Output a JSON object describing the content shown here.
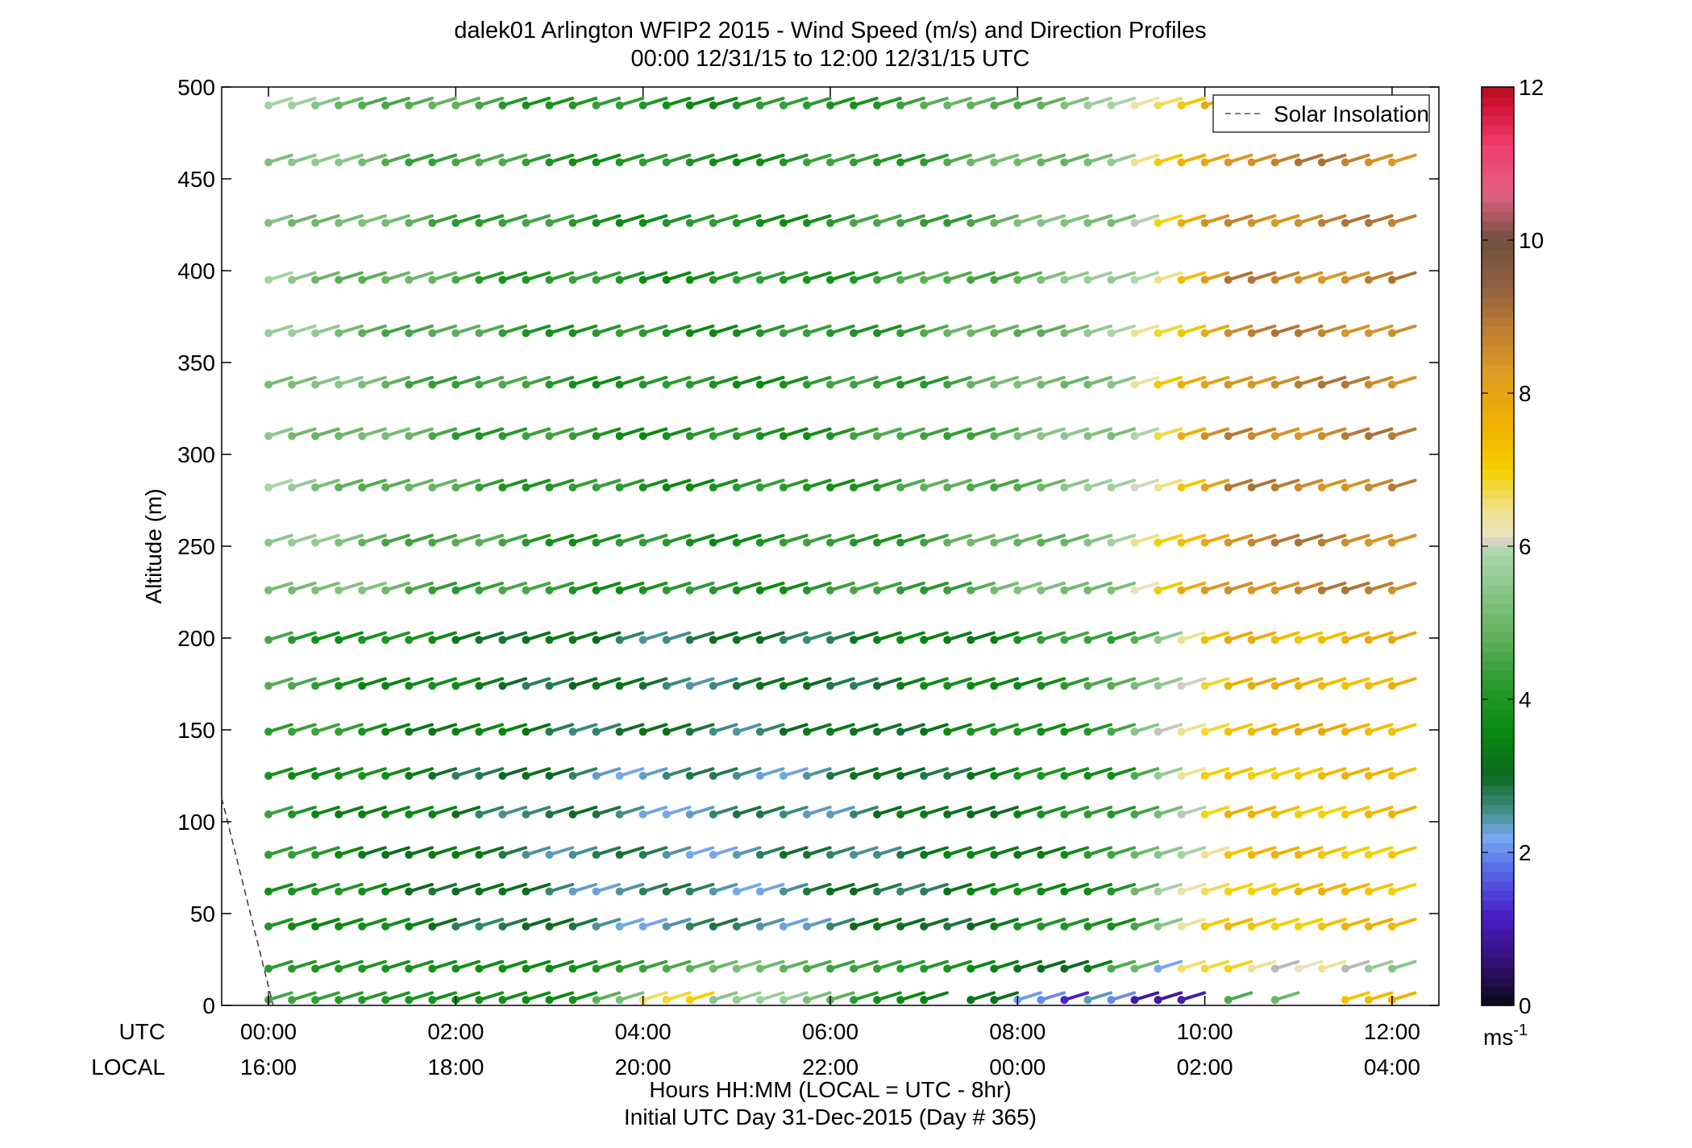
{
  "chart_data": {
    "type": "wind-barb-profile",
    "title": "dalek01 Arlington WFIP2 2015 - Wind Speed (m/s) and Direction Profiles",
    "subtitle": "00:00 12/31/15 to 12:00 12/31/15  UTC",
    "ylabel": "Altitude (m)",
    "xlabel_line1": "Hours HH:MM  (LOCAL = UTC - 8hr)",
    "xlabel_line2": "Initial UTC Day 31-Dec-2015 (Day # 365)",
    "row_label_utc": "UTC",
    "row_label_local": "LOCAL",
    "x_ticks_utc": [
      "00:00",
      "02:00",
      "04:00",
      "06:00",
      "08:00",
      "10:00",
      "12:00"
    ],
    "x_ticks_local": [
      "16:00",
      "18:00",
      "20:00",
      "22:00",
      "00:00",
      "02:00",
      "04:00"
    ],
    "x_tick_hours": [
      0,
      2,
      4,
      6,
      8,
      10,
      12
    ],
    "xlim_hours": [
      -0.5,
      12.5
    ],
    "ylim": [
      0,
      500
    ],
    "y_ticks": [
      0,
      50,
      100,
      150,
      200,
      250,
      300,
      350,
      400,
      450,
      500
    ],
    "legend": {
      "label": "Solar Insolation",
      "placement": "top-right"
    },
    "solar_insolation": {
      "hours": [
        -0.5,
        0.05
      ],
      "altitudes": [
        113,
        0
      ]
    },
    "colorbar": {
      "unit_label": "ms",
      "unit_exp": "-1",
      "ticks": [
        0,
        2,
        4,
        6,
        8,
        10,
        12
      ],
      "range": [
        0,
        12
      ]
    },
    "altitudes": [
      3,
      20,
      43,
      62,
      82,
      104,
      125,
      149,
      174,
      199,
      226,
      252,
      282,
      310,
      338,
      366,
      395,
      426,
      459,
      490
    ],
    "time_step_hours": 0.25,
    "num_times": 49,
    "profile_speeds_ms": {
      "h3": [
        4.5,
        4.4,
        4.3,
        4.2,
        4.1,
        4.0,
        3.9,
        3.8,
        3.7,
        3.8,
        3.8,
        3.7,
        3.6,
        3.8,
        4.8,
        5.2,
        6.6,
        6.8,
        7.0,
        5.4,
        5.6,
        5.7,
        5.6,
        5.2,
        4.8,
        4.2,
        3.8,
        3.6,
        3.4,
        null,
        3.2,
        3.1,
        2.1,
        2.0,
        1.2,
        2.4,
        2.0,
        0.9,
        0.9,
        1.0,
        null,
        4.6,
        null,
        5.0,
        null,
        null,
        7.2,
        7.4,
        7.6
      ],
      "h20": [
        4.2,
        4.1,
        4.0,
        4.0,
        4.0,
        3.9,
        3.9,
        3.8,
        3.8,
        3.7,
        3.7,
        3.6,
        3.6,
        3.8,
        4.0,
        4.2,
        4.4,
        4.6,
        4.8,
        5.0,
        5.2,
        5.0,
        4.8,
        4.6,
        4.4,
        4.4,
        4.3,
        4.2,
        4.1,
        3.9,
        3.6,
        3.4,
        3.1,
        3.0,
        3.0,
        3.4,
        4.6,
        5.0,
        2.2,
        6.6,
        6.8,
        6.9,
        6.4,
        6.0,
        6.2,
        6.4,
        6.0,
        5.6,
        5.4
      ]
    },
    "speed_gradient": {
      "low": 3.5,
      "mid": 4.4,
      "upper": 5.5,
      "late_start_hour": 9.0,
      "late_rise_ms": 3.2
    },
    "direction_note": "Barbs point toward upper-left (westerly/northwesterly), from-direction approx 290 deg"
  }
}
